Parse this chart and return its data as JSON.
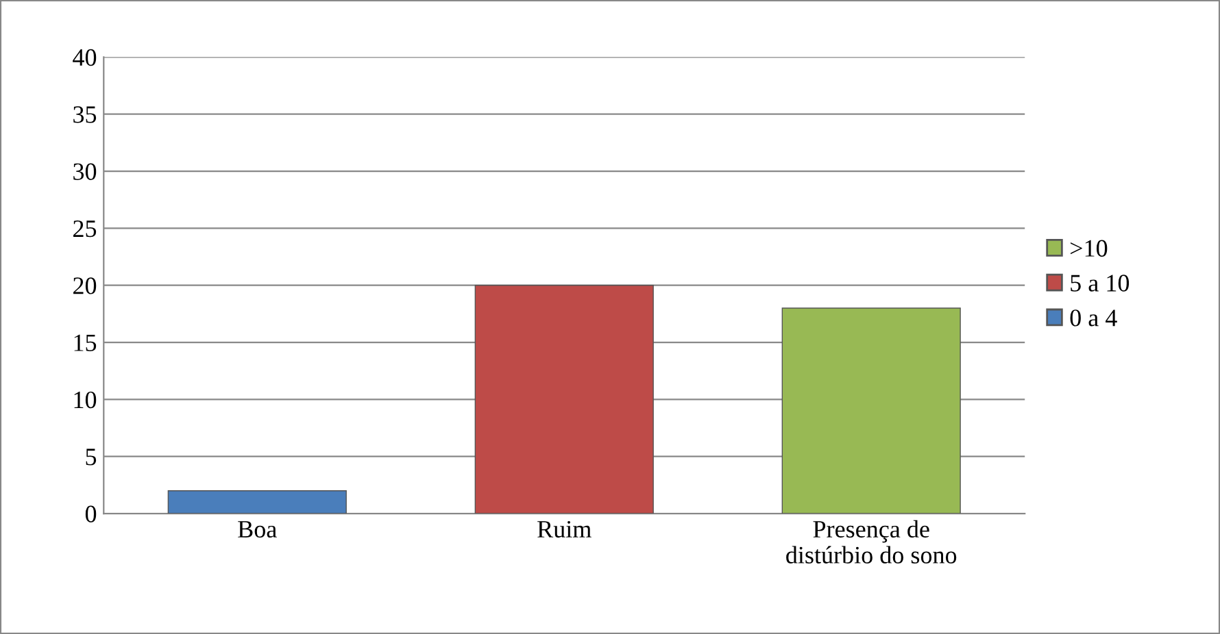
{
  "chart_data": {
    "type": "bar",
    "stacked": true,
    "categories": [
      "Boa",
      "Ruim",
      "Presença de\ndistúrbio do sono"
    ],
    "series": [
      {
        "name": "0 a 4",
        "color": "#4a7ebb",
        "values": [
          2,
          null,
          null
        ]
      },
      {
        "name": "5 a 10",
        "color": "#be4b48",
        "values": [
          null,
          20,
          null
        ]
      },
      {
        "name": ">10",
        "color": "#98b954",
        "values": [
          null,
          null,
          18
        ]
      }
    ],
    "ylim": [
      0,
      40
    ],
    "yticks": [
      0,
      5,
      10,
      15,
      20,
      25,
      30,
      35,
      40
    ],
    "grid": "y",
    "legend": "right"
  }
}
